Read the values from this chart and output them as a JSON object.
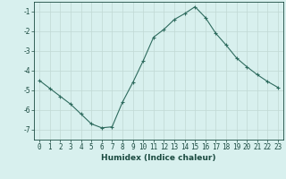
{
  "x": [
    0,
    1,
    2,
    3,
    4,
    5,
    6,
    7,
    8,
    9,
    10,
    11,
    12,
    13,
    14,
    15,
    16,
    17,
    18,
    19,
    20,
    21,
    22,
    23
  ],
  "y": [
    -4.5,
    -4.9,
    -5.3,
    -5.7,
    -6.2,
    -6.7,
    -6.9,
    -6.85,
    -5.6,
    -4.6,
    -3.5,
    -2.3,
    -1.9,
    -1.4,
    -1.1,
    -0.75,
    -1.3,
    -2.1,
    -2.7,
    -3.35,
    -3.8,
    -4.2,
    -4.55,
    -4.85
  ],
  "line_color": "#2e6b5e",
  "marker": "+",
  "marker_color": "#2e6b5e",
  "bg_color": "#d8f0ee",
  "grid_color": "#c0d8d4",
  "xlabel": "Humidex (Indice chaleur)",
  "xlim": [
    -0.5,
    23.5
  ],
  "ylim": [
    -7.5,
    -0.5
  ],
  "xtick_labels": [
    "0",
    "1",
    "2",
    "3",
    "4",
    "5",
    "6",
    "7",
    "8",
    "9",
    "10",
    "11",
    "12",
    "13",
    "14",
    "15",
    "16",
    "17",
    "18",
    "19",
    "20",
    "21",
    "22",
    "23"
  ],
  "ytick_values": [
    -7,
    -6,
    -5,
    -4,
    -3,
    -2,
    -1
  ],
  "font_color": "#1a4a40",
  "label_fontsize": 6.5,
  "tick_fontsize": 5.5
}
